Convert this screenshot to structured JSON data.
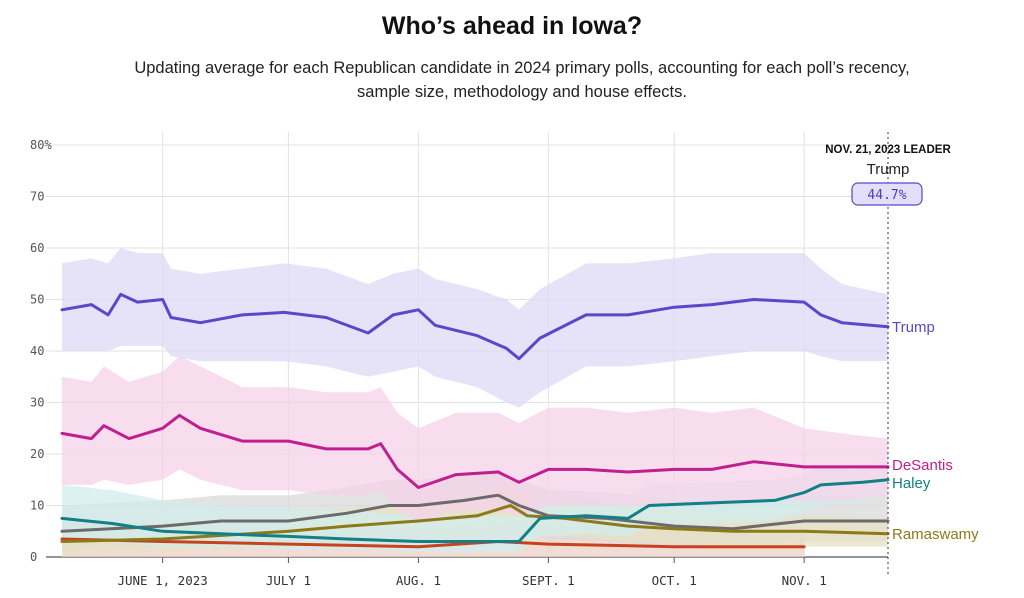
{
  "title": "Who’s ahead in Iowa?",
  "subtitle": "Updating average for each Republican candidate in 2024 primary polls, accounting for each poll’s recency, sample size, methodology and house effects.",
  "leader": {
    "heading": "NOV. 21, 2023 LEADER",
    "name": "Trump",
    "value": "44.7%"
  },
  "chart_data": {
    "type": "line",
    "title": "Who’s ahead in Iowa?",
    "ylim": [
      0,
      80
    ],
    "y_ticks": [
      "80%",
      "70",
      "60",
      "50",
      "40",
      "30",
      "20",
      "10",
      "0"
    ],
    "x_tick_labels": [
      "JUNE 1, 2023",
      "JULY 1",
      "AUG. 1",
      "SEPT. 1",
      "OCT. 1",
      "NOV. 1"
    ],
    "x_range": [
      "2023-05-08",
      "2023-11-21"
    ],
    "grid": true,
    "series": [
      {
        "name": "Trump",
        "color": "#5b47c9",
        "band_color": "#ddd8f6",
        "x": [
          "2023-05-08",
          "2023-05-15",
          "2023-05-19",
          "2023-05-22",
          "2023-05-26",
          "2023-06-01",
          "2023-06-03",
          "2023-06-10",
          "2023-06-20",
          "2023-06-30",
          "2023-07-10",
          "2023-07-20",
          "2023-07-26",
          "2023-08-01",
          "2023-08-05",
          "2023-08-15",
          "2023-08-22",
          "2023-08-25",
          "2023-08-30",
          "2023-09-10",
          "2023-09-20",
          "2023-10-01",
          "2023-10-10",
          "2023-10-20",
          "2023-11-01",
          "2023-11-05",
          "2023-11-10",
          "2023-11-21"
        ],
        "values": [
          48,
          49,
          47,
          51,
          49.5,
          50,
          46.5,
          45.5,
          47,
          47.5,
          46.5,
          43.5,
          47,
          48,
          45,
          43,
          40.5,
          38.5,
          42.5,
          47,
          47,
          48.5,
          49,
          50,
          49.5,
          47,
          45.5,
          44.7
        ],
        "band_lower": [
          40,
          40,
          40,
          41,
          41,
          41,
          39,
          38,
          38,
          38,
          37,
          35,
          36,
          37,
          35,
          33,
          30,
          29,
          32,
          37,
          37,
          38,
          39,
          40,
          40,
          39,
          38,
          38
        ],
        "band_upper": [
          57,
          58,
          57,
          60,
          59,
          59,
          56,
          55,
          56,
          57,
          56,
          53,
          55,
          56,
          54,
          52,
          50,
          48,
          52,
          57,
          57,
          58,
          59,
          59,
          59,
          56,
          53,
          51
        ],
        "end_label": "Trump"
      },
      {
        "name": "DeSantis",
        "color": "#bf1f8f",
        "band_color": "#f5d2e9",
        "x": [
          "2023-05-08",
          "2023-05-15",
          "2023-05-18",
          "2023-05-24",
          "2023-06-01",
          "2023-06-05",
          "2023-06-10",
          "2023-06-20",
          "2023-07-01",
          "2023-07-10",
          "2023-07-20",
          "2023-07-23",
          "2023-07-27",
          "2023-08-01",
          "2023-08-10",
          "2023-08-20",
          "2023-08-25",
          "2023-09-01",
          "2023-09-10",
          "2023-09-20",
          "2023-10-01",
          "2023-10-10",
          "2023-10-20",
          "2023-11-01",
          "2023-11-10",
          "2023-11-21"
        ],
        "values": [
          24,
          23,
          25.5,
          23,
          25,
          27.5,
          25,
          22.5,
          22.5,
          21,
          21,
          22,
          17,
          13.5,
          16,
          16.5,
          14.5,
          17,
          17,
          16.5,
          17,
          17,
          18.5,
          17.5,
          17.5,
          17.5
        ],
        "band_lower": [
          14,
          14,
          15,
          14,
          15,
          17,
          15,
          13,
          13,
          12,
          12,
          13,
          9,
          7,
          9,
          9,
          8,
          10,
          10,
          10,
          10,
          10,
          11,
          11,
          11,
          12
        ],
        "band_upper": [
          35,
          34,
          37,
          34,
          36,
          39,
          37,
          33,
          33,
          32,
          32,
          33,
          28,
          25,
          28,
          28,
          26,
          29,
          29,
          28,
          29,
          28,
          29,
          25,
          24,
          23
        ],
        "end_label": "DeSantis"
      },
      {
        "name": "Haley",
        "color": "#137f86",
        "band_color": "#d2ecec",
        "x": [
          "2023-05-08",
          "2023-05-20",
          "2023-06-01",
          "2023-06-15",
          "2023-07-01",
          "2023-07-15",
          "2023-08-01",
          "2023-08-15",
          "2023-08-25",
          "2023-08-30",
          "2023-09-10",
          "2023-09-20",
          "2023-09-25",
          "2023-10-10",
          "2023-10-25",
          "2023-11-01",
          "2023-11-05",
          "2023-11-15",
          "2023-11-21"
        ],
        "values": [
          7.5,
          6.5,
          5,
          4.5,
          4,
          3.5,
          3,
          3,
          3,
          7.5,
          8,
          7.5,
          10,
          10.5,
          11,
          12.5,
          14,
          14.5,
          15
        ],
        "band_lower": [
          3,
          3,
          2,
          2,
          1.5,
          1.5,
          1,
          1,
          1,
          4,
          4.5,
          4,
          6,
          6.5,
          7,
          8.5,
          10,
          11,
          12
        ],
        "band_upper": [
          14,
          13,
          11,
          10,
          9.5,
          9,
          8,
          8,
          8,
          12,
          12.5,
          12,
          14,
          14.5,
          15,
          16,
          17.5,
          18,
          18.5
        ],
        "end_label": "Haley"
      },
      {
        "name": "Ramaswamy",
        "color": "#8c7a1a",
        "band_color": "#e8e2c4",
        "x": [
          "2023-05-08",
          "2023-06-01",
          "2023-07-01",
          "2023-07-15",
          "2023-08-01",
          "2023-08-15",
          "2023-08-23",
          "2023-08-27",
          "2023-09-05",
          "2023-09-20",
          "2023-10-01",
          "2023-10-15",
          "2023-11-01",
          "2023-11-21"
        ],
        "values": [
          3,
          3.5,
          5,
          6,
          7,
          8,
          10,
          8,
          7.5,
          6,
          5.5,
          5,
          5,
          4.5
        ],
        "band_lower": [
          0.5,
          1,
          2,
          3,
          3.5,
          4,
          5,
          4,
          4,
          3,
          2.5,
          2,
          2,
          2
        ],
        "band_upper": [
          6,
          7,
          8.5,
          9.5,
          10.5,
          12,
          14,
          12,
          11.5,
          10,
          9,
          8.5,
          8,
          7.5
        ],
        "end_label": "Ramaswamy"
      },
      {
        "name": "",
        "color": "#6b6b6b",
        "band_color": "#d9d9d9",
        "x": [
          "2023-05-08",
          "2023-06-01",
          "2023-06-15",
          "2023-07-01",
          "2023-07-15",
          "2023-07-25",
          "2023-08-01",
          "2023-08-12",
          "2023-08-20",
          "2023-08-25",
          "2023-09-01",
          "2023-09-15",
          "2023-10-01",
          "2023-10-15",
          "2023-11-01",
          "2023-11-21"
        ],
        "values": [
          5,
          6,
          7,
          7,
          8.5,
          10,
          10,
          11,
          12,
          10,
          8,
          7.5,
          6,
          5.5,
          7,
          7
        ],
        "band_lower": [
          1,
          2,
          2.5,
          2.5,
          3.5,
          5,
          5,
          6,
          7,
          5,
          3.5,
          3,
          2,
          2,
          3,
          3
        ],
        "band_upper": [
          10,
          11,
          12,
          12,
          13.5,
          15,
          15,
          16,
          17,
          15,
          13,
          12.5,
          11,
          10.5,
          12,
          12
        ],
        "end_label": ""
      },
      {
        "name": "",
        "color": "#c8421e",
        "band_color": "#ecd0c8",
        "x": [
          "2023-05-08",
          "2023-06-01",
          "2023-07-01",
          "2023-08-01",
          "2023-08-20",
          "2023-09-01",
          "2023-10-01",
          "2023-11-01"
        ],
        "values": [
          3.5,
          3,
          2.5,
          2,
          3,
          2.5,
          2,
          2
        ],
        "band_lower": [
          0,
          0,
          0,
          0,
          0,
          0,
          0,
          0
        ],
        "band_upper": [
          7,
          6.5,
          6,
          5.5,
          6.5,
          6,
          5.5,
          5.5
        ],
        "end_label": ""
      }
    ]
  }
}
